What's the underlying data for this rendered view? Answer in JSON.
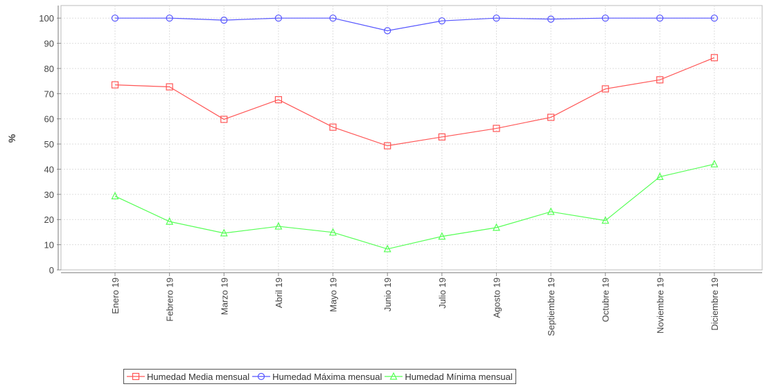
{
  "chart_data": {
    "type": "line",
    "title": "",
    "xlabel": "",
    "ylabel": "%",
    "ylim": [
      0,
      105
    ],
    "yticks": [
      0,
      10,
      20,
      30,
      40,
      50,
      60,
      70,
      80,
      90,
      100
    ],
    "grid": true,
    "legend_position": "bottom",
    "categories": [
      "Enero 19",
      "Febrero 19",
      "Marzo 19",
      "Abril 19",
      "Mayo 19",
      "Junio 19",
      "Julio 19",
      "Agosto 19",
      "Septiembre 19",
      "Octubre 19",
      "Noviembre 19",
      "Diciembre 19"
    ],
    "series": [
      {
        "name": "Humedad Media mensual",
        "marker": "square",
        "color": "#ff5555",
        "values": [
          73.5,
          72.7,
          59.8,
          67.6,
          56.7,
          49.3,
          52.8,
          56.2,
          60.6,
          71.9,
          75.5,
          84.3
        ]
      },
      {
        "name": "Humedad Máxima mensual",
        "marker": "circle",
        "color": "#5555ff",
        "values": [
          100,
          100,
          99.2,
          100,
          100,
          95,
          98.9,
          100,
          99.6,
          100,
          100,
          100
        ]
      },
      {
        "name": "Humedad Mínima mensual",
        "marker": "triangle",
        "color": "#55ff55",
        "values": [
          29.3,
          19.2,
          14.6,
          17.3,
          14.9,
          8.3,
          13.3,
          16.8,
          23.1,
          19.6,
          37,
          42
        ]
      }
    ]
  }
}
